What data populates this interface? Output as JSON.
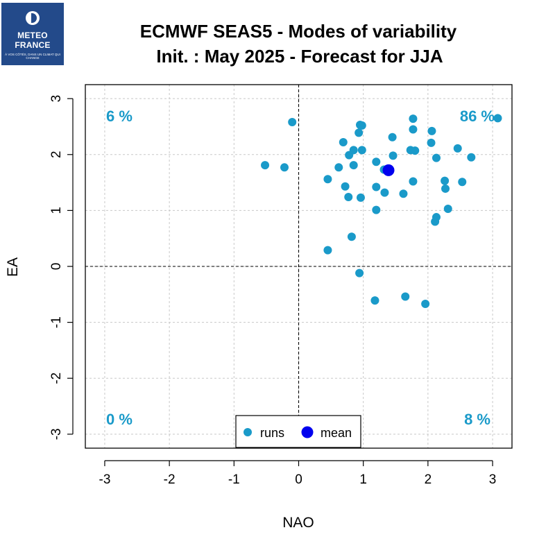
{
  "logo": {
    "line1": "METEO",
    "line2": "FRANCE",
    "tagline": "À VOS CÔTÉS, DANS UN CLIMAT QUI CHANGE"
  },
  "colors": {
    "runs": "#1a9ac9",
    "mean": "#0000ee",
    "logo_bg": "#234a8a"
  },
  "chart_data": {
    "type": "scatter",
    "title": [
      "ECMWF SEAS5 - Modes of variability",
      "Init. : May 2025 - Forecast for JJA"
    ],
    "xlabel": "NAO",
    "ylabel": "EA",
    "xlim": [
      -3.3,
      3.3
    ],
    "ylim": [
      -3.25,
      3.25
    ],
    "xticks": [
      -3,
      -2,
      -1,
      0,
      1,
      2,
      3
    ],
    "yticks": [
      -3,
      -2,
      -1,
      0,
      1,
      2,
      3
    ],
    "grid": true,
    "quadrant_percentages": {
      "top_left": "6 %",
      "top_right": "86 %",
      "bottom_left": "0 %",
      "bottom_right": "8 %"
    },
    "legend": {
      "position": "bottom-center",
      "entries": [
        "runs",
        "mean"
      ]
    },
    "series": [
      {
        "name": "runs",
        "points": [
          [
            -0.1,
            2.58
          ],
          [
            -0.52,
            1.81
          ],
          [
            -0.22,
            1.77
          ],
          [
            0.45,
            1.56
          ],
          [
            0.45,
            0.29
          ],
          [
            0.62,
            1.77
          ],
          [
            0.69,
            2.22
          ],
          [
            0.72,
            1.43
          ],
          [
            0.77,
            1.24
          ],
          [
            0.78,
            1.99
          ],
          [
            0.82,
            0.53
          ],
          [
            0.85,
            2.08
          ],
          [
            0.85,
            1.81
          ],
          [
            0.93,
            2.39
          ],
          [
            0.95,
            2.53
          ],
          [
            0.98,
            2.52
          ],
          [
            0.98,
            2.08
          ],
          [
            0.96,
            1.23
          ],
          [
            0.94,
            -0.12
          ],
          [
            1.2,
            1.87
          ],
          [
            1.2,
            1.42
          ],
          [
            1.2,
            1.01
          ],
          [
            1.18,
            -0.61
          ],
          [
            1.32,
            1.73
          ],
          [
            1.33,
            1.32
          ],
          [
            1.45,
            2.31
          ],
          [
            1.46,
            1.98
          ],
          [
            1.62,
            1.3
          ],
          [
            1.65,
            -0.54
          ],
          [
            1.73,
            2.08
          ],
          [
            1.77,
            2.64
          ],
          [
            1.77,
            2.45
          ],
          [
            1.77,
            1.52
          ],
          [
            1.8,
            2.07
          ],
          [
            1.96,
            -0.67
          ],
          [
            2.06,
            2.42
          ],
          [
            2.05,
            2.21
          ],
          [
            2.13,
            1.94
          ],
          [
            2.11,
            0.8
          ],
          [
            2.13,
            0.88
          ],
          [
            2.26,
            1.53
          ],
          [
            2.27,
            1.39
          ],
          [
            2.31,
            1.03
          ],
          [
            2.46,
            2.11
          ],
          [
            2.53,
            1.51
          ],
          [
            2.67,
            1.95
          ],
          [
            3.08,
            2.65
          ]
        ]
      },
      {
        "name": "mean",
        "points": [
          [
            1.39,
            1.72
          ]
        ]
      }
    ]
  }
}
